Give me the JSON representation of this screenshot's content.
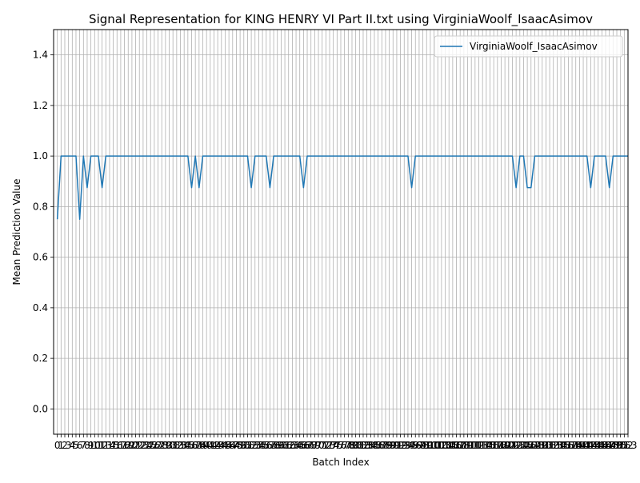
{
  "chart_data": {
    "type": "line",
    "title": "Signal Representation for KING HENRY VI Part II.txt using VirginiaWoolf_IsaacAsimov",
    "xlabel": "Batch Index",
    "ylabel": "Mean Prediction Value",
    "xlim": [
      -1,
      153
    ],
    "ylim": [
      -0.1,
      1.5
    ],
    "yticks": [
      0.0,
      0.2,
      0.4,
      0.6,
      0.8,
      1.0,
      1.2,
      1.4
    ],
    "ytick_labels": [
      "0.0",
      "0.2",
      "0.4",
      "0.6",
      "0.8",
      "1.0",
      "1.2",
      "1.4"
    ],
    "xticks_every_index": true,
    "grid": true,
    "legend_position": "top-right",
    "series": [
      {
        "name": "VirginiaWoolf_IsaacAsimov",
        "color": "#1f77b4",
        "x": [
          0,
          1,
          2,
          3,
          4,
          5,
          6,
          7,
          8,
          9,
          10,
          11,
          12,
          13,
          14,
          15,
          16,
          17,
          18,
          19,
          20,
          21,
          22,
          23,
          24,
          25,
          26,
          27,
          28,
          29,
          30,
          31,
          32,
          33,
          34,
          35,
          36,
          37,
          38,
          39,
          40,
          41,
          42,
          43,
          44,
          45,
          46,
          47,
          48,
          49,
          50,
          51,
          52,
          53,
          54,
          55,
          56,
          57,
          58,
          59,
          60,
          61,
          62,
          63,
          64,
          65,
          66,
          67,
          68,
          69,
          70,
          71,
          72,
          73,
          74,
          75,
          76,
          77,
          78,
          79,
          80,
          81,
          82,
          83,
          84,
          85,
          86,
          87,
          88,
          89,
          90,
          91,
          92,
          93,
          94,
          95,
          96,
          97,
          98,
          99,
          100,
          101,
          102,
          103,
          104,
          105,
          106,
          107,
          108,
          109,
          110,
          111,
          112,
          113,
          114,
          115,
          116,
          117,
          118,
          119,
          120,
          121,
          122,
          123,
          124,
          125,
          126,
          127,
          128,
          129,
          130,
          131,
          132,
          133,
          134,
          135,
          136,
          137,
          138,
          139,
          140,
          141,
          142,
          143,
          144,
          145,
          146,
          147,
          148,
          149,
          150,
          151,
          152,
          153
        ],
        "values": [
          0.75,
          1,
          1,
          1,
          1,
          1,
          0.75,
          1,
          0.875,
          1,
          1,
          1,
          0.875,
          1,
          1,
          1,
          1,
          1,
          1,
          1,
          1,
          1,
          1,
          1,
          1,
          1,
          1,
          1,
          1,
          1,
          1,
          1,
          1,
          1,
          1,
          1,
          0.875,
          1,
          0.875,
          1,
          1,
          1,
          1,
          1,
          1,
          1,
          1,
          1,
          1,
          1,
          1,
          1,
          0.875,
          1,
          1,
          1,
          1,
          0.875,
          1,
          1,
          1,
          1,
          1,
          1,
          1,
          1,
          0.875,
          1,
          1,
          1,
          1,
          1,
          1,
          1,
          1,
          1,
          1,
          1,
          1,
          1,
          1,
          1,
          1,
          1,
          1,
          1,
          1,
          1,
          1,
          1,
          1,
          1,
          1,
          1,
          1,
          0.875,
          1,
          1,
          1,
          1,
          1,
          1,
          1,
          1,
          1,
          1,
          1,
          1,
          1,
          1,
          1,
          1,
          1,
          1,
          1,
          1,
          1,
          1,
          1,
          1,
          1,
          1,
          1,
          0.875,
          1,
          1,
          0.875,
          0.875,
          1,
          1,
          1,
          1,
          1,
          1,
          1,
          1,
          1,
          1,
          1,
          1,
          1,
          1,
          1,
          0.875,
          1,
          1,
          1,
          1,
          0.875,
          1,
          1,
          1,
          1,
          1
        ]
      }
    ]
  }
}
